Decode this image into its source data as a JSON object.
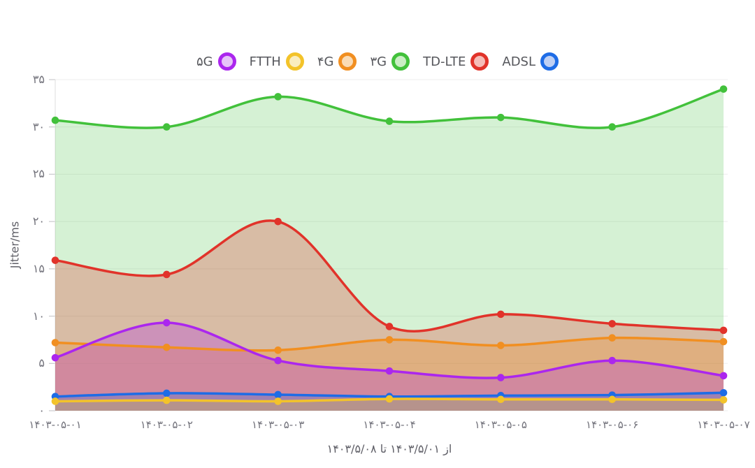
{
  "chart_data": {
    "type": "area",
    "title": "",
    "ylabel": "Jitter/ms",
    "xlabel": "از ۱۴۰۳/۵/۰۱ تا ۱۴۰۳/۵/۰۸",
    "legend_position": "top",
    "grid": "horizontal",
    "ylim": [
      0,
      35
    ],
    "yticks": [
      {
        "value": 0,
        "label": "۰"
      },
      {
        "value": 5,
        "label": "۵"
      },
      {
        "value": 10,
        "label": "۱۰"
      },
      {
        "value": 15,
        "label": "۱۵"
      },
      {
        "value": 20,
        "label": "۲۰"
      },
      {
        "value": 25,
        "label": "۲۵"
      },
      {
        "value": 30,
        "label": "۳۰"
      },
      {
        "value": 35,
        "label": "۳۵"
      }
    ],
    "x_categories": [
      "۱۴۰۳-۰۵-۰۱",
      "۱۴۰۳-۰۵-۰۲",
      "۱۴۰۳-۰۵-۰۳",
      "۱۴۰۳-۰۵-۰۴",
      "۱۴۰۳-۰۵-۰۵",
      "۱۴۰۳-۰۵-۰۶",
      "۱۴۰۳-۰۵-۰۷"
    ],
    "series": [
      {
        "id": "5g",
        "name": "۵G",
        "color": "#ab26ee",
        "marker_fill": "#e6c4f8",
        "area_opacity": 0.28,
        "values": [
          5.6,
          9.3,
          5.3,
          4.2,
          3.5,
          5.3,
          3.7
        ]
      },
      {
        "id": "ftth",
        "name": "FTTH",
        "color": "#f3c32a",
        "marker_fill": "#faedbf",
        "area_opacity": 0.28,
        "values": [
          1.0,
          1.1,
          1.0,
          1.25,
          1.2,
          1.2,
          1.15
        ]
      },
      {
        "id": "4g",
        "name": "۴G",
        "color": "#f18f21",
        "marker_fill": "#fadcb6",
        "area_opacity": 0.28,
        "values": [
          7.2,
          6.7,
          6.4,
          7.5,
          6.9,
          7.7,
          7.3
        ]
      },
      {
        "id": "3g",
        "name": "۳G",
        "color": "#42c13b",
        "marker_fill": "#caeec4",
        "area_opacity": 0.22,
        "values": [
          30.7,
          30.0,
          33.2,
          30.6,
          31.0,
          30.0,
          34.0
        ]
      },
      {
        "id": "td-lte",
        "name": "TD-LTE",
        "color": "#e1332a",
        "marker_fill": "#f5bdb8",
        "area_opacity": 0.28,
        "values": [
          15.9,
          14.4,
          20.0,
          8.9,
          10.2,
          9.2,
          8.5
        ]
      },
      {
        "id": "adsl",
        "name": "ADSL",
        "color": "#1e6ce6",
        "marker_fill": "#bfd0f4",
        "area_opacity": 0.28,
        "values": [
          1.5,
          1.85,
          1.7,
          1.5,
          1.6,
          1.65,
          1.9
        ]
      }
    ],
    "draw_order": [
      "3g",
      "td-lte",
      "4g",
      "5g",
      "adsl",
      "ftth"
    ],
    "grid_color": "#ededed",
    "axis_line_color": "#e2e2e2",
    "tick_color": "#c9c9cd"
  }
}
